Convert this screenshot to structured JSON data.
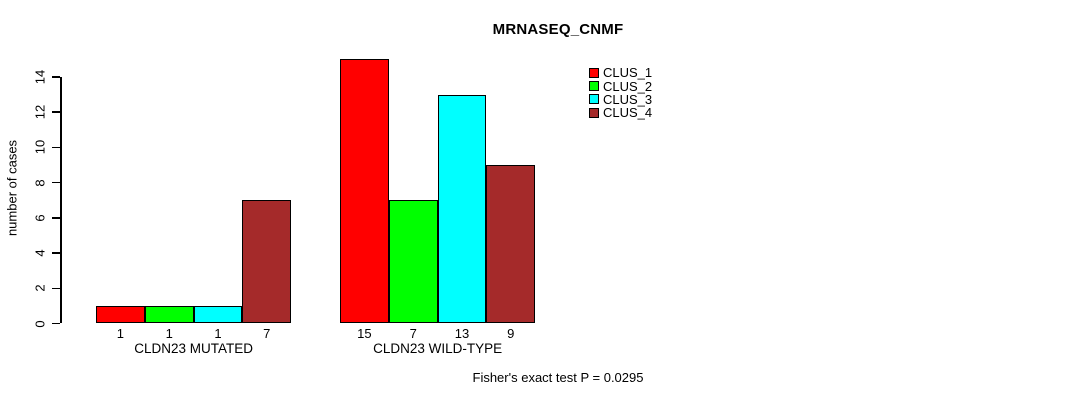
{
  "chart_data": {
    "type": "bar",
    "title": "MRNASEQ_CNMF",
    "ylabel": "number of cases",
    "xlabel": "",
    "categories": [
      "CLDN23 MUTATED",
      "CLDN23 WILD-TYPE"
    ],
    "series": [
      {
        "name": "CLUS_1",
        "color": "#FF0000",
        "values": [
          1,
          15
        ]
      },
      {
        "name": "CLUS_2",
        "color": "#00FF00",
        "values": [
          1,
          7
        ]
      },
      {
        "name": "CLUS_3",
        "color": "#00FFFF",
        "values": [
          1,
          13
        ]
      },
      {
        "name": "CLUS_4",
        "color": "#A52A2A",
        "values": [
          7,
          9
        ]
      }
    ],
    "bar_value_labels": [
      [
        1,
        1,
        1,
        7
      ],
      [
        15,
        7,
        13,
        9
      ]
    ],
    "yticks": [
      0,
      2,
      4,
      6,
      8,
      10,
      12,
      14
    ],
    "ylim": [
      0,
      15
    ],
    "grid": false,
    "legend_position": "top-right",
    "legend_entries": [
      "CLUS_1",
      "CLUS_2",
      "CLUS_3",
      "CLUS_4"
    ],
    "annotation": "Fisher's exact test P = 0.0295",
    "axis_color": "#000000",
    "text_color": "#000000",
    "background_color": "#FFFFFF"
  }
}
